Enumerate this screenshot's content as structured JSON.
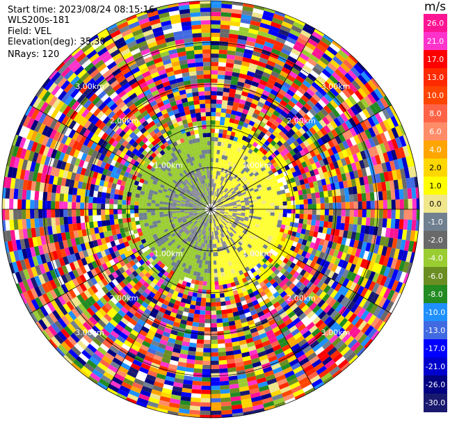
{
  "header": {
    "start_time": "Start time: 2023/08/24 08:15:16",
    "instrument": "WLS200s-181",
    "field": "Field: VEL",
    "elevation": "Elevation(deg): 35.30",
    "nrays": "NRays: 120"
  },
  "colorbar": {
    "unit": "m/s",
    "ticks": [
      "26.0",
      "21.0",
      "17.0",
      "13.0",
      "10.0",
      "8.0",
      "6.0",
      "4.0",
      "2.0",
      "1.0",
      "0.0",
      "-1.0",
      "-2.0",
      "-4.0",
      "-6.0",
      "-8.0",
      "-10.0",
      "-13.0",
      "-17.0",
      "-21.0",
      "-26.0",
      "-30.0"
    ],
    "colors": [
      "#ff1493",
      "#ff33cc",
      "#ff0000",
      "#ff2a00",
      "#ff4500",
      "#ff6347",
      "#ff8c69",
      "#ffa500",
      "#ffd700",
      "#ffff00",
      "#f0e68c",
      "#708090",
      "#696969",
      "#9acd32",
      "#6b8e23",
      "#228b22",
      "#1e90ff",
      "#4169e1",
      "#0000ff",
      "#0000cd",
      "#000080",
      "#191970"
    ]
  },
  "range_rings": {
    "labels_outer": "3.00km",
    "labels_mid": "2.00km",
    "labels_inner": "1.00km"
  }
}
